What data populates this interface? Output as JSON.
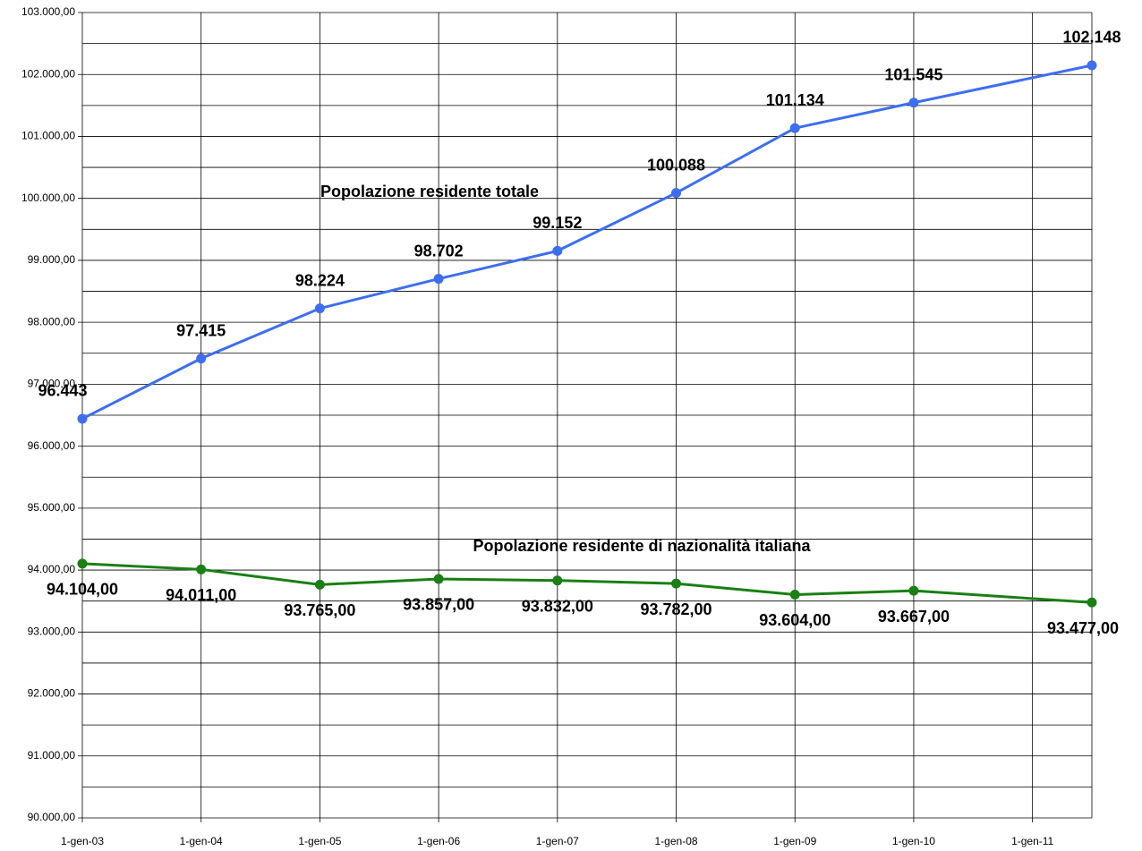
{
  "chart_data": {
    "type": "line",
    "xticks": [
      {
        "value": 0,
        "label": "1-gen-03"
      },
      {
        "value": 1,
        "label": "1-gen-04"
      },
      {
        "value": 2,
        "label": "1-gen-05"
      },
      {
        "value": 3,
        "label": "1-gen-06"
      },
      {
        "value": 4,
        "label": "1-gen-07"
      },
      {
        "value": 5,
        "label": "1-gen-08"
      },
      {
        "value": 6,
        "label": "1-gen-09"
      },
      {
        "value": 7,
        "label": "1-gen-10"
      },
      {
        "value": 8,
        "label": "1-gen-11"
      }
    ],
    "xlim": [
      0,
      8.5
    ],
    "x": [
      0,
      1,
      2,
      3,
      4,
      5,
      6,
      7,
      8.5
    ],
    "ylim": [
      90000,
      103000
    ],
    "yticks": [
      {
        "value": 90000,
        "label": "90.000,00"
      },
      {
        "value": 91000,
        "label": "91.000,00"
      },
      {
        "value": 92000,
        "label": "92.000,00"
      },
      {
        "value": 93000,
        "label": "93.000,00"
      },
      {
        "value": 94000,
        "label": "94.000,00"
      },
      {
        "value": 95000,
        "label": "95.000,00"
      },
      {
        "value": 96000,
        "label": "96.000,00"
      },
      {
        "value": 97000,
        "label": "97.000,00"
      },
      {
        "value": 98000,
        "label": "98.000,00"
      },
      {
        "value": 99000,
        "label": "99.000,00"
      },
      {
        "value": 100000,
        "label": "100.000,00"
      },
      {
        "value": 101000,
        "label": "101.000,00"
      },
      {
        "value": 102000,
        "label": "102.000,00"
      },
      {
        "value": 103000,
        "label": "103.000,00"
      }
    ],
    "y_minor_ticks": [
      90500,
      91500,
      92500,
      93500,
      94500,
      95500,
      96500,
      97500,
      98500,
      99500,
      100500,
      101500,
      102500
    ],
    "grid": true,
    "series": [
      {
        "name": "Popolazione residente totale",
        "color": "#3d6ef0",
        "values": [
          96443,
          97415,
          98224,
          98702,
          99152,
          100088,
          101134,
          101545,
          102148
        ],
        "value_labels": [
          "96.443",
          "97.415",
          "98.224",
          "98.702",
          "99.152",
          "100.088",
          "101.134",
          "101.545",
          "102.148"
        ],
        "label_position": "above"
      },
      {
        "name": "Popolazione residente di nazionalità italiana",
        "color": "#1a7f14",
        "values": [
          94104,
          94011,
          93765,
          93857,
          93832,
          93782,
          93604,
          93667,
          93477
        ],
        "value_labels": [
          "94.104,00",
          "94.011,00",
          "93.765,00",
          "93.857,00",
          "93.832,00",
          "93.782,00",
          "93.604,00",
          "93.667,00",
          "93.477,00"
        ],
        "label_position": "below"
      }
    ]
  }
}
